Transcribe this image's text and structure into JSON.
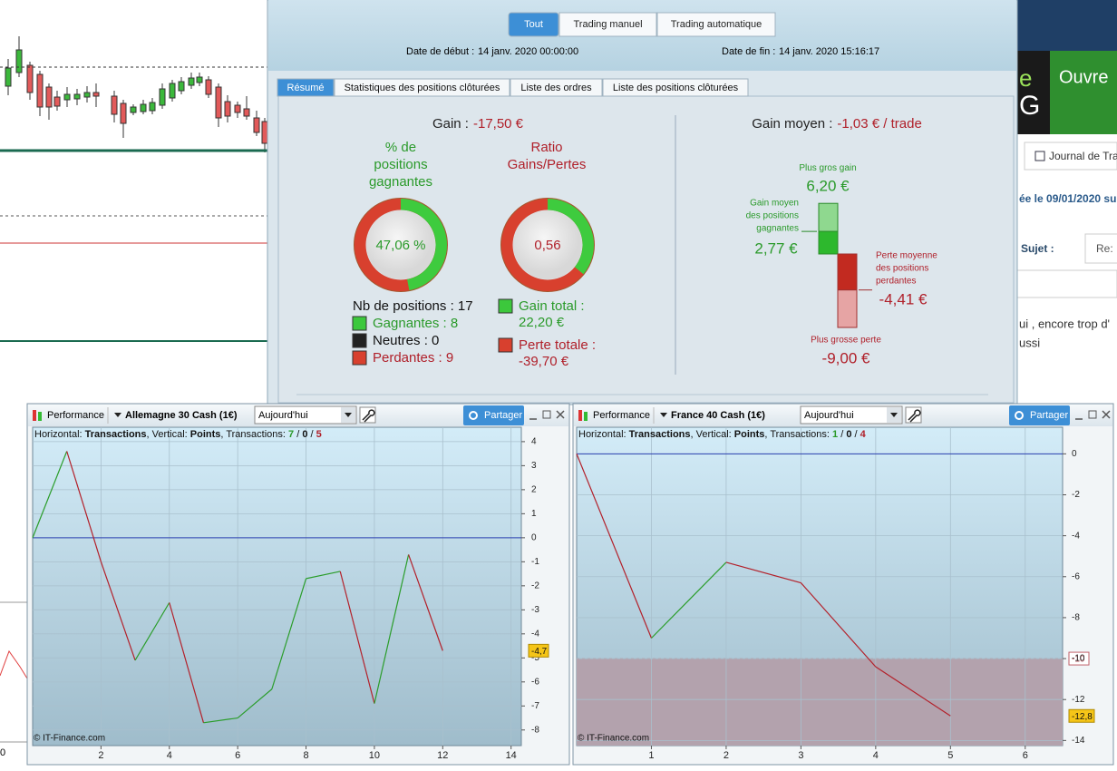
{
  "ui": {
    "filter_tabs": [
      "Tout",
      "Trading manuel",
      "Trading automatique"
    ],
    "start_label": "Date de début :",
    "start": "14 janv. 2020 00:00:00",
    "end_label": "Date de fin :",
    "end": "14 janv. 2020 15:16:17",
    "tabs": [
      "Résumé",
      "Statistiques des positions clôturées",
      "Liste des ordres",
      "Liste des positions clôturées"
    ],
    "summary": {
      "gain_label": "Gain :",
      "gain": "-17,50 €",
      "pct_title": [
        "% de",
        "positions",
        "gagnantes"
      ],
      "win_pct": {
        "value": 47.06,
        "label": "47,06 %"
      },
      "ratio_title": [
        "Ratio",
        "Gains/Pertes"
      ],
      "ratio": {
        "value": 0.56,
        "label": "0,56"
      },
      "nb": "Nb de positions : 17",
      "gagnantes": "Gagnantes : 8",
      "neutres": "Neutres : 0",
      "perdantes": "Perdantes : 9",
      "gain_total": [
        "Gain total :",
        "22,20 €"
      ],
      "perte_totale": [
        "Perte totale :",
        "-39,70 €"
      ],
      "gain_moyen_label": "Gain moyen :",
      "gain_moyen": "-1,03 € / trade",
      "plus_gros_gain": {
        "title": [
          "Plus gros gain"
        ],
        "value": 6.2,
        "label": "6,20 €"
      },
      "gain_moyen_pos": {
        "title": [
          "Gain moyen",
          "des positions",
          "gagnantes"
        ],
        "value": 2.77,
        "label": "2,77 €"
      },
      "perte_moyenne": {
        "title": [
          "Perte moyenne",
          "des positions",
          "perdantes"
        ],
        "value": -4.41,
        "label": "-4,41 €"
      },
      "plus_grosse_perte": {
        "title": [
          "Plus grosse perte"
        ],
        "value": -9.0,
        "label": "-9,00 €"
      }
    }
  },
  "chart_data": [
    {
      "type": "line",
      "toolbar": {
        "app": "Performance",
        "symbol": "Allemagne 30 Cash (1€)",
        "period": "Aujourd'hui",
        "share": "Partager"
      },
      "header": {
        "h_label": "Horizontal: ",
        "h": "Transactions",
        "v_label": ", Vertical: ",
        "v": "Points",
        "t_label": ", Transactions: ",
        "wins": "7",
        "sep": " / ",
        "neutral": "0",
        "losses": "5"
      },
      "copyright": "© IT-Finance.com",
      "x": [
        0,
        1,
        2,
        3,
        4,
        5,
        6,
        7,
        8,
        9,
        10,
        11,
        12
      ],
      "series": [
        {
          "values": [
            0,
            3.6,
            -1.0,
            -5.1,
            -2.7,
            -7.7,
            -7.5,
            -6.3,
            -1.7,
            -1.4,
            -6.9,
            -0.7,
            -4.7
          ],
          "up_color": "#2a9d2a",
          "down_color": "#b3202a",
          "last_value_label": "-4,7"
        }
      ],
      "xlim": [
        0,
        14.3
      ],
      "ylim": [
        -8.65,
        4.6
      ],
      "xticks": [
        2,
        4,
        6,
        8,
        10,
        12,
        14
      ],
      "yticks": [
        4,
        3,
        2,
        1,
        0,
        -1,
        -2,
        -3,
        -4,
        -5,
        -6,
        -7,
        -8
      ],
      "grid": true
    },
    {
      "type": "line",
      "toolbar": {
        "app": "Performance",
        "symbol": "France 40 Cash (1€)",
        "period": "Aujourd'hui",
        "share": "Partager"
      },
      "header": {
        "h_label": "Horizontal: ",
        "h": "Transactions",
        "v_label": ", Vertical: ",
        "v": "Points",
        "t_label": ", Transactions: ",
        "wins": "1",
        "sep": " / ",
        "neutral": "0",
        "losses": "4"
      },
      "copyright": "© IT-Finance.com",
      "x": [
        0,
        1,
        2,
        3,
        4,
        5
      ],
      "series": [
        {
          "values": [
            0,
            -9.0,
            -5.3,
            -6.3,
            -10.4,
            -12.8
          ],
          "up_color": "#2a9d2a",
          "down_color": "#b3202a",
          "last_value_label": "-12,8"
        }
      ],
      "reference": {
        "value": -10,
        "label": "-10"
      },
      "xlim": [
        0,
        6.5
      ],
      "ylim": [
        -14.25,
        1.3
      ],
      "xticks": [
        1,
        2,
        3,
        4,
        5,
        6
      ],
      "yticks": [
        0,
        -2,
        -4,
        -6,
        -8,
        -10,
        -12,
        -14
      ],
      "grid": true
    }
  ],
  "background": {
    "banner_letter": "e",
    "banner_letter2": "G",
    "banner_text": "Ouvre",
    "journal": "Journal de Tra",
    "post_date": "ée le 09/01/2020 su",
    "subject": "Sujet :",
    "reply": "Re:",
    "line1": "ui , encore trop d'",
    "line2": "ussi",
    "left_tick": "0"
  }
}
